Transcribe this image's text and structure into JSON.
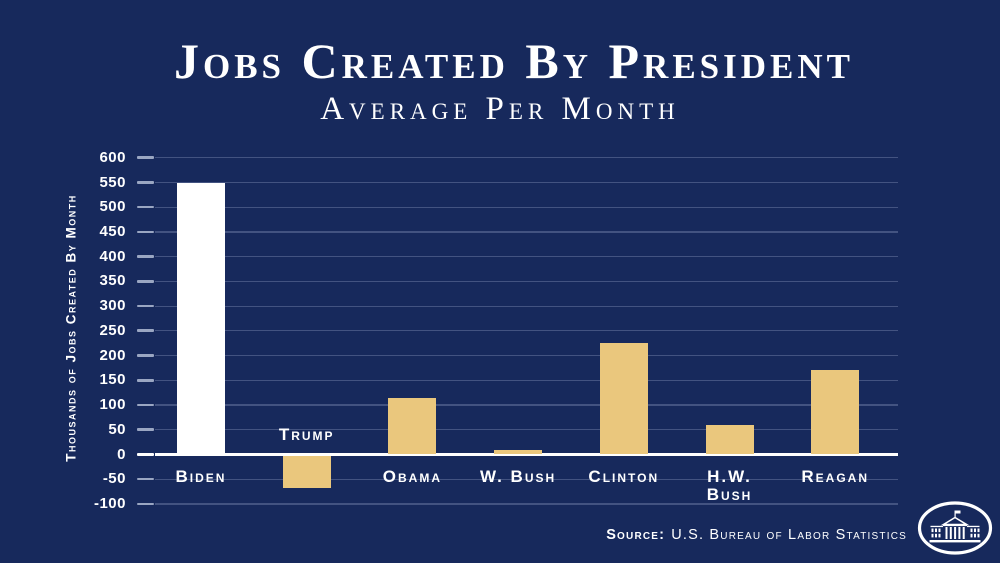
{
  "header": {
    "title": "Jobs Created By President",
    "subtitle": "Average Per Month"
  },
  "chart_data": {
    "type": "bar",
    "title": "Jobs Created By President",
    "subtitle": "Average Per Month",
    "categories": [
      "Biden",
      "Trump",
      "Obama",
      "W. Bush",
      "Clinton",
      "H.W.\nBush",
      "Reagan"
    ],
    "values": [
      550,
      -65,
      115,
      10,
      225,
      60,
      170
    ],
    "bar_colors": [
      "#ffffff",
      "#eac77d",
      "#eac77d",
      "#eac77d",
      "#eac77d",
      "#eac77d",
      "#eac77d"
    ],
    "ylabel": "Thousands of Jobs Created By Month",
    "ylim": [
      -100,
      600
    ],
    "ytick_step": 50,
    "grid": true,
    "legend": false
  },
  "footer": {
    "source_label": "Source:",
    "source_text": "U.S. Bureau of Labor Statistics"
  },
  "colors": {
    "background": "#17295c",
    "bar_gold": "#eac77d",
    "bar_white": "#ffffff",
    "gridline": "rgba(200,212,240,0.25)",
    "tick": "#9aa6c2",
    "text": "#ffffff"
  }
}
